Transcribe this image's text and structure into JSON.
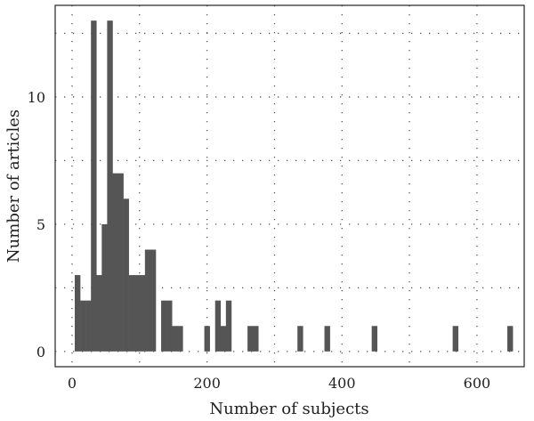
{
  "chart_data": {
    "type": "bar",
    "subtype": "histogram",
    "title": "",
    "xlabel": "Number of subjects",
    "ylabel": "Number of articles",
    "xlim": [
      -25,
      670
    ],
    "ylim": [
      -0.6,
      13.6
    ],
    "xticks": [
      0,
      200,
      400,
      600
    ],
    "yticks": [
      0,
      5,
      10
    ],
    "bin_width": 8,
    "grid": true,
    "bar_color": "#555555",
    "bins": [
      {
        "x": 4,
        "count": 3
      },
      {
        "x": 12,
        "count": 2
      },
      {
        "x": 20,
        "count": 2
      },
      {
        "x": 28,
        "count": 13
      },
      {
        "x": 36,
        "count": 3
      },
      {
        "x": 44,
        "count": 5
      },
      {
        "x": 52,
        "count": 13
      },
      {
        "x": 60,
        "count": 7
      },
      {
        "x": 68,
        "count": 7
      },
      {
        "x": 76,
        "count": 6
      },
      {
        "x": 84,
        "count": 3
      },
      {
        "x": 92,
        "count": 3
      },
      {
        "x": 100,
        "count": 3
      },
      {
        "x": 108,
        "count": 4
      },
      {
        "x": 116,
        "count": 4
      },
      {
        "x": 132,
        "count": 2
      },
      {
        "x": 140,
        "count": 2
      },
      {
        "x": 148,
        "count": 1
      },
      {
        "x": 156,
        "count": 1
      },
      {
        "x": 196,
        "count": 1
      },
      {
        "x": 212,
        "count": 2
      },
      {
        "x": 220,
        "count": 1
      },
      {
        "x": 228,
        "count": 2
      },
      {
        "x": 260,
        "count": 1
      },
      {
        "x": 268,
        "count": 1
      },
      {
        "x": 334,
        "count": 1
      },
      {
        "x": 374,
        "count": 1
      },
      {
        "x": 444,
        "count": 1
      },
      {
        "x": 564,
        "count": 1
      },
      {
        "x": 645,
        "count": 1
      }
    ]
  }
}
